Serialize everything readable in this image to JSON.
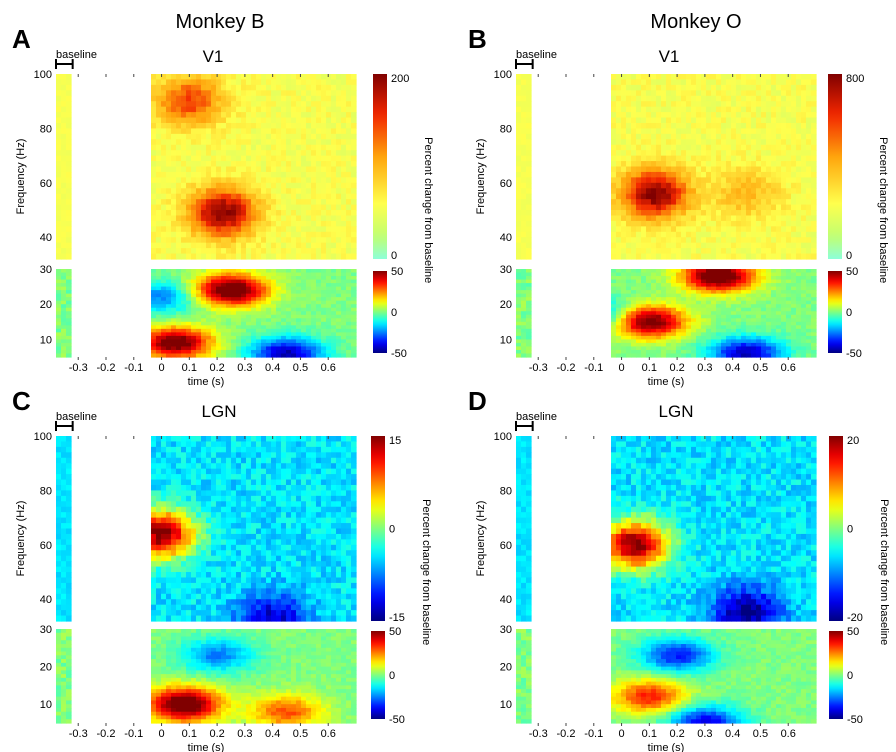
{
  "chart_data": [
    {
      "type": "heatmap",
      "panel": "A",
      "figure_heading": "Monkey B",
      "title": "V1",
      "baseline_label": "baseline",
      "xlabel": "time (s)",
      "x_ticks": [
        "-0.3",
        "-0.2",
        "-0.1",
        "0",
        "0.1",
        "0.2",
        "0.3",
        "0.4",
        "0.5",
        "0.6"
      ],
      "xlim": [
        -0.38,
        0.7
      ],
      "baseline_window": [
        -0.38,
        -0.32
      ],
      "data_gap": [
        -0.32,
        -0.03
      ],
      "top": {
        "ylabel": "Frequency (Hz)",
        "y_ticks": [
          "40",
          "60",
          "80",
          "100"
        ],
        "ylim": [
          32,
          100
        ],
        "colorbar": {
          "ticks": [
            "200",
            "0"
          ],
          "range": [
            0,
            200
          ],
          "label": "Percent change from baseline",
          "scale": "hot"
        },
        "features": [
          {
            "t": 0.22,
            "f": 49,
            "value": 200,
            "desc": "peak"
          },
          {
            "t": 0.1,
            "f": 90,
            "value": 150
          }
        ]
      },
      "bottom": {
        "y_ticks": [
          "10",
          "20",
          "30"
        ],
        "ylim": [
          5,
          30
        ],
        "colorbar": {
          "ticks": [
            "50",
            "0",
            "-50"
          ],
          "range": [
            -50,
            50
          ],
          "scale": "jet"
        },
        "features": [
          {
            "t": 0.25,
            "f": 24,
            "value": 60
          },
          {
            "t": 0.05,
            "f": 9,
            "value": 55
          },
          {
            "t": 0.45,
            "f": 6,
            "value": -45
          },
          {
            "t": 0.0,
            "f": 22,
            "value": -25
          }
        ]
      }
    },
    {
      "type": "heatmap",
      "panel": "B",
      "figure_heading": "Monkey O",
      "title": "V1",
      "baseline_label": "baseline",
      "xlabel": "time (s)",
      "x_ticks": [
        "-0.3",
        "-0.2",
        "-0.1",
        "0",
        "0.1",
        "0.2",
        "0.3",
        "0.4",
        "0.5",
        "0.6"
      ],
      "xlim": [
        -0.38,
        0.7
      ],
      "baseline_window": [
        -0.38,
        -0.32
      ],
      "data_gap": [
        -0.32,
        -0.03
      ],
      "top": {
        "ylabel": "Frequency (Hz)",
        "y_ticks": [
          "40",
          "60",
          "80",
          "100"
        ],
        "ylim": [
          32,
          100
        ],
        "colorbar": {
          "ticks": [
            "800",
            "0"
          ],
          "range": [
            0,
            800
          ],
          "label": "Percent change from baseline",
          "scale": "hot"
        },
        "features": [
          {
            "t": 0.12,
            "f": 56,
            "value": 800,
            "desc": "peak"
          },
          {
            "t": 0.45,
            "f": 56,
            "value": 400
          }
        ]
      },
      "bottom": {
        "y_ticks": [
          "10",
          "20",
          "30"
        ],
        "ylim": [
          5,
          30
        ],
        "colorbar": {
          "ticks": [
            "50",
            "0",
            "-50"
          ],
          "range": [
            -50,
            50
          ],
          "scale": "jet"
        },
        "features": [
          {
            "t": 0.35,
            "f": 28,
            "value": 60
          },
          {
            "t": 0.1,
            "f": 15,
            "value": 55
          },
          {
            "t": 0.45,
            "f": 6,
            "value": -45
          },
          {
            "t": -0.1,
            "f": 17,
            "value": -30
          }
        ]
      }
    },
    {
      "type": "heatmap",
      "panel": "C",
      "title": "LGN",
      "baseline_label": "baseline",
      "xlabel": "time (s)",
      "x_ticks": [
        "-0.3",
        "-0.2",
        "-0.1",
        "0",
        "0.1",
        "0.2",
        "0.3",
        "0.4",
        "0.5",
        "0.6"
      ],
      "xlim": [
        -0.38,
        0.7
      ],
      "baseline_window": [
        -0.38,
        -0.32
      ],
      "data_gap": [
        -0.32,
        -0.03
      ],
      "top": {
        "ylabel": "Frequency (Hz)",
        "y_ticks": [
          "40",
          "60",
          "80",
          "100"
        ],
        "ylim": [
          32,
          100
        ],
        "colorbar": {
          "ticks": [
            "15",
            "0",
            "-15"
          ],
          "range": [
            -15,
            15
          ],
          "label": "Percent change from baseline",
          "scale": "jet"
        },
        "features": [
          {
            "t": 0.0,
            "f": 64,
            "value": 15,
            "desc": "onset transient"
          },
          {
            "t": 0.4,
            "f": 33,
            "value": -13
          }
        ]
      },
      "bottom": {
        "y_ticks": [
          "10",
          "20",
          "30"
        ],
        "ylim": [
          5,
          30
        ],
        "colorbar": {
          "ticks": [
            "50",
            "0",
            "-50"
          ],
          "range": [
            -50,
            50
          ],
          "scale": "jet"
        },
        "features": [
          {
            "t": 0.08,
            "f": 10,
            "value": 60
          },
          {
            "t": 0.45,
            "f": 8,
            "value": 30
          },
          {
            "t": 0.2,
            "f": 23,
            "value": -25
          }
        ]
      }
    },
    {
      "type": "heatmap",
      "panel": "D",
      "title": "LGN",
      "baseline_label": "baseline",
      "xlabel": "time (s)",
      "x_ticks": [
        "-0.3",
        "-0.2",
        "-0.1",
        "0",
        "0.1",
        "0.2",
        "0.3",
        "0.4",
        "0.5",
        "0.6"
      ],
      "xlim": [
        -0.38,
        0.7
      ],
      "baseline_window": [
        -0.38,
        -0.32
      ],
      "data_gap": [
        -0.32,
        -0.03
      ],
      "top": {
        "ylabel": "Frequency (Hz)",
        "y_ticks": [
          "40",
          "60",
          "80",
          "100"
        ],
        "ylim": [
          32,
          100
        ],
        "colorbar": {
          "ticks": [
            "20",
            "0",
            "-20"
          ],
          "range": [
            -20,
            20
          ],
          "label": "Percent change from baseline",
          "scale": "jet"
        },
        "features": [
          {
            "t": 0.05,
            "f": 60,
            "value": 20,
            "desc": "onset transient"
          },
          {
            "t": 0.45,
            "f": 35,
            "value": -20
          }
        ]
      },
      "bottom": {
        "y_ticks": [
          "10",
          "20",
          "30"
        ],
        "ylim": [
          5,
          30
        ],
        "colorbar": {
          "ticks": [
            "50",
            "0",
            "-50"
          ],
          "range": [
            -50,
            50
          ],
          "scale": "jet"
        },
        "features": [
          {
            "t": 0.1,
            "f": 12,
            "value": 35
          },
          {
            "t": 0.2,
            "f": 23,
            "value": -35
          },
          {
            "t": 0.3,
            "f": 5,
            "value": -40
          }
        ]
      }
    }
  ]
}
